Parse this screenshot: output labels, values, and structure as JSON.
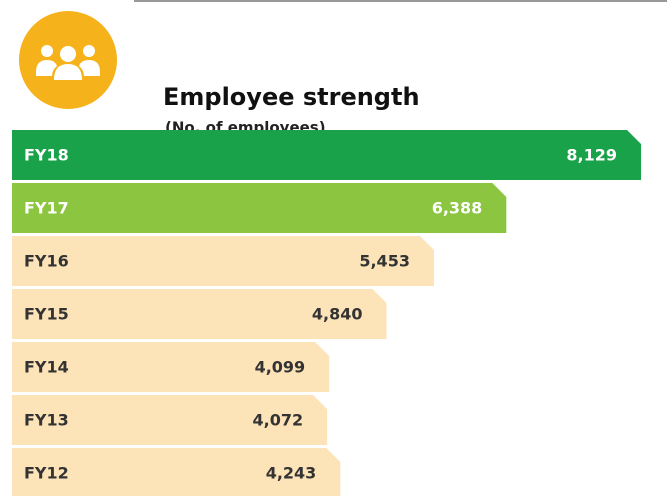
{
  "chart_data": {
    "type": "bar",
    "orientation": "horizontal",
    "title": "Employee strength",
    "subtitle": "(No. of employees)",
    "categories": [
      "FY18",
      "FY17",
      "FY16",
      "FY15",
      "FY14",
      "FY13",
      "FY12"
    ],
    "values": [
      8129,
      6388,
      5453,
      4840,
      4099,
      4072,
      4243
    ],
    "value_labels": [
      "8,129",
      "6,388",
      "5,453",
      "4,840",
      "4,099",
      "4,072",
      "4,243"
    ],
    "colors": [
      "#1aa24a",
      "#8cc540",
      "#fde3b8",
      "#fde3b8",
      "#fde3b8",
      "#fde3b8",
      "#fde3b8"
    ],
    "xlim": [
      0,
      8400
    ]
  }
}
